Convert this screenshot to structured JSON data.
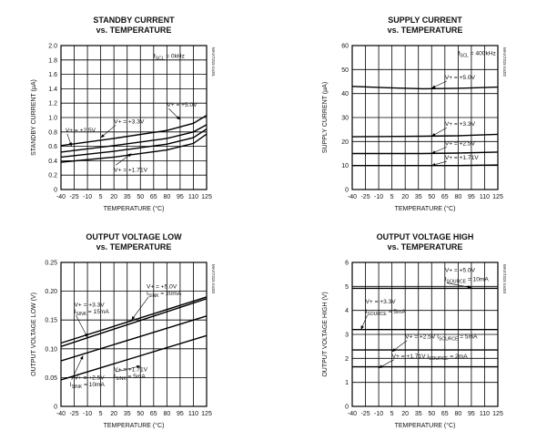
{
  "charts": [
    {
      "type": "line",
      "title": [
        "STANDBY CURRENT",
        "vs. TEMPERATURE"
      ],
      "xlabel": "TEMPERATURE (°C)",
      "ylabel": "STANDBY CURRENT (µA)",
      "side_code": "MAX7315 toc01",
      "x_ticks": [
        -40,
        -25,
        -10,
        5,
        20,
        35,
        50,
        65,
        80,
        95,
        110,
        125
      ],
      "xlim": [
        -40,
        125
      ],
      "y_ticks": [
        "0",
        "0.2",
        "0.4",
        "0.6",
        "0.8",
        "1.0",
        "1.2",
        "1.4",
        "1.6",
        "1.8",
        "2.0"
      ],
      "ylim": [
        0,
        2.0
      ],
      "annotations": [
        {
          "text": "f",
          "sub": "SCL",
          "rest": " = 0kHz",
          "at": [
            65,
            1.83
          ]
        },
        {
          "text": "V+ = +5.0V",
          "at": [
            80,
            1.15
          ],
          "pointer_to": [
            95,
            0.97
          ]
        },
        {
          "text": "V+ = +3.3V",
          "at": [
            20,
            0.92
          ],
          "pointer_to": [
            5,
            0.72
          ]
        },
        {
          "text": "V+ = +2.5V",
          "at": [
            -35,
            0.8
          ],
          "pointer_to": [
            -28,
            0.6
          ]
        },
        {
          "text": "V+ = +1.71V",
          "at": [
            20,
            0.25
          ],
          "pointer_to": [
            40,
            0.5
          ]
        }
      ],
      "series": [
        {
          "label": "V+ = +5.0V",
          "x": [
            -40,
            20,
            80,
            110,
            125
          ],
          "y": [
            0.61,
            0.71,
            0.82,
            0.92,
            1.03
          ]
        },
        {
          "label": "V+ = +3.3V",
          "x": [
            -40,
            20,
            80,
            110,
            125
          ],
          "y": [
            0.52,
            0.61,
            0.71,
            0.8,
            0.9
          ]
        },
        {
          "label": "V+ = +2.5V",
          "x": [
            -40,
            20,
            80,
            110,
            125
          ],
          "y": [
            0.45,
            0.53,
            0.63,
            0.72,
            0.84
          ]
        },
        {
          "label": "V+ = +1.71V",
          "x": [
            -40,
            20,
            80,
            110,
            125
          ],
          "y": [
            0.38,
            0.45,
            0.55,
            0.64,
            0.77
          ]
        }
      ]
    },
    {
      "type": "line",
      "title": [
        "SUPPLY CURRENT",
        "vs. TEMPERATURE"
      ],
      "xlabel": "TEMPERATURE (°C)",
      "ylabel": "SUPPLY CURRENT (µA)",
      "side_code": "MAX7315 toc02",
      "x_ticks": [
        -40,
        -25,
        -10,
        5,
        20,
        35,
        50,
        65,
        80,
        95,
        110,
        125
      ],
      "xlim": [
        -40,
        125
      ],
      "y_ticks": [
        "0",
        "10",
        "20",
        "30",
        "40",
        "50",
        "60"
      ],
      "ylim": [
        0,
        60
      ],
      "annotations": [
        {
          "text": "f",
          "sub": "SCL",
          "rest": " = 400kHz",
          "at": [
            80,
            56
          ]
        },
        {
          "text": "V+ = +5.0V",
          "at": [
            65,
            46
          ],
          "pointer_to": [
            50,
            42.2
          ]
        },
        {
          "text": "V+ = +3.3V",
          "at": [
            65,
            26.5
          ],
          "pointer_to": [
            50,
            22.2
          ]
        },
        {
          "text": "V+ = +2.5V",
          "at": [
            65,
            18.5
          ],
          "pointer_to": [
            50,
            15
          ]
        },
        {
          "text": "V+ = +1.71V",
          "at": [
            65,
            12.5
          ],
          "pointer_to": [
            50,
            10
          ]
        }
      ],
      "series": [
        {
          "label": "V+ = +5.0V",
          "x": [
            -40,
            0,
            40,
            80,
            125
          ],
          "y": [
            43,
            42.4,
            42,
            42.2,
            42.7
          ]
        },
        {
          "label": "V+ = +3.3V",
          "x": [
            -40,
            0,
            40,
            80,
            125
          ],
          "y": [
            22,
            22.1,
            22.2,
            22.4,
            23
          ]
        },
        {
          "label": "V+ = +2.5V",
          "x": [
            -40,
            0,
            40,
            80,
            125
          ],
          "y": [
            15,
            15,
            15,
            15.2,
            15.6
          ]
        },
        {
          "label": "V+ = +1.71V",
          "x": [
            -40,
            0,
            40,
            80,
            125
          ],
          "y": [
            10,
            10,
            10,
            10,
            10.2
          ]
        }
      ]
    },
    {
      "type": "line",
      "title": [
        "OUTPUT VOLTAGE LOW",
        "vs. TEMPERATURE"
      ],
      "xlabel": "TEMPERATURE (°C)",
      "ylabel": "OUTPUT VOLTAGE LOW (V)",
      "side_code": "MAX7315 toc03",
      "x_ticks": [
        -40,
        -25,
        -10,
        5,
        20,
        35,
        50,
        65,
        80,
        95,
        110,
        125
      ],
      "xlim": [
        -40,
        125
      ],
      "y_ticks": [
        "0",
        "0.05",
        "0.10",
        "0.15",
        "0.20",
        "0.25"
      ],
      "ylim": [
        0,
        0.25
      ],
      "annotations": [
        {
          "text": "V+ = +5.0V",
          "at": [
            57,
            0.205
          ]
        },
        {
          "text": "I",
          "sub": "SINK",
          "rest": " = 20mA",
          "at": [
            57,
            0.193
          ],
          "pointer_to": [
            40,
            0.15
          ]
        },
        {
          "text": "V+ = +3.3V",
          "at": [
            -25,
            0.173
          ]
        },
        {
          "text": "I",
          "sub": "SINK",
          "rest": " = 15mA",
          "at": [
            -25,
            0.161
          ],
          "pointer_to": [
            -10,
            0.12
          ]
        },
        {
          "text": "V+ = +2.5V",
          "at": [
            -25,
            0.047
          ]
        },
        {
          "text": "I",
          "sub": "SINK",
          "rest": " = 10mA",
          "at": [
            -30,
            0.035
          ],
          "pointer_to": [
            -15,
            0.088
          ]
        },
        {
          "text": "V+ = +1.71V",
          "at": [
            20,
            0.061
          ]
        },
        {
          "text": "I",
          "sub": "SINK",
          "rest": " = 5mA",
          "at": [
            20,
            0.049
          ],
          "pointer_to": [
            50,
            0.07
          ]
        }
      ],
      "series": [
        {
          "label": "V+ = +5.0V",
          "x": [
            -40,
            125
          ],
          "y": [
            0.11,
            0.19
          ]
        },
        {
          "label": "V+ = +3.3V",
          "x": [
            -40,
            125
          ],
          "y": [
            0.104,
            0.187
          ]
        },
        {
          "label": "V+ = +2.5V",
          "x": [
            -40,
            125
          ],
          "y": [
            0.079,
            0.157
          ]
        },
        {
          "label": "V+ = +1.71V",
          "x": [
            -40,
            125
          ],
          "y": [
            0.046,
            0.123
          ]
        }
      ]
    },
    {
      "type": "line",
      "title": [
        "OUTPUT VOLTAGE HIGH",
        "vs. TEMPERATURE"
      ],
      "xlabel": "TEMPERATURE (°C)",
      "ylabel": "OUTPUT VOLTAGE HIGH (V)",
      "side_code": "MAX7315 toc04",
      "x_ticks": [
        -40,
        -25,
        -10,
        5,
        20,
        35,
        50,
        65,
        80,
        95,
        110,
        125
      ],
      "xlim": [
        -40,
        125
      ],
      "y_ticks": [
        "0",
        "1",
        "2",
        "3",
        "4",
        "5",
        "6"
      ],
      "ylim": [
        0,
        6
      ],
      "annotations": [
        {
          "text": "V+ = +5.0V",
          "at": [
            65,
            5.6
          ]
        },
        {
          "text": "I",
          "sub": "SOURCE",
          "rest": " = 10mA",
          "at": [
            65,
            5.22
          ],
          "pointer_to": [
            95,
            4.95
          ]
        },
        {
          "text": "V+ = +3.3V",
          "at": [
            -25,
            4.3
          ]
        },
        {
          "text": "I",
          "sub": "SOURCE",
          "rest": " = 5mA",
          "at": [
            -25,
            3.88
          ],
          "pointer_to": [
            -30,
            3.2
          ]
        },
        {
          "text": "V+ = +2.5V I",
          "sub": "SOURCE",
          "rest": " = 5mA",
          "at": [
            20,
            2.82
          ],
          "pointer_to": [
            5,
            2.28
          ]
        },
        {
          "text": "V+ = +1.71V I",
          "sub": "SOURCE",
          "rest": " = 2mA",
          "at": [
            5,
            2.02
          ],
          "pointer_to": [
            -10,
            1.6
          ]
        }
      ],
      "series": [
        {
          "label": "V+ = +5.0V",
          "x": [
            -40,
            125
          ],
          "y": [
            4.92,
            4.92
          ]
        },
        {
          "label": "V+ = +3.3V",
          "x": [
            -40,
            125
          ],
          "y": [
            3.2,
            3.2
          ]
        },
        {
          "label": "V+ = +2.5V",
          "x": [
            -40,
            125
          ],
          "y": [
            2.35,
            2.35
          ]
        },
        {
          "label": "V+ = +1.71V",
          "x": [
            -40,
            125
          ],
          "y": [
            1.65,
            1.65
          ]
        }
      ]
    }
  ]
}
